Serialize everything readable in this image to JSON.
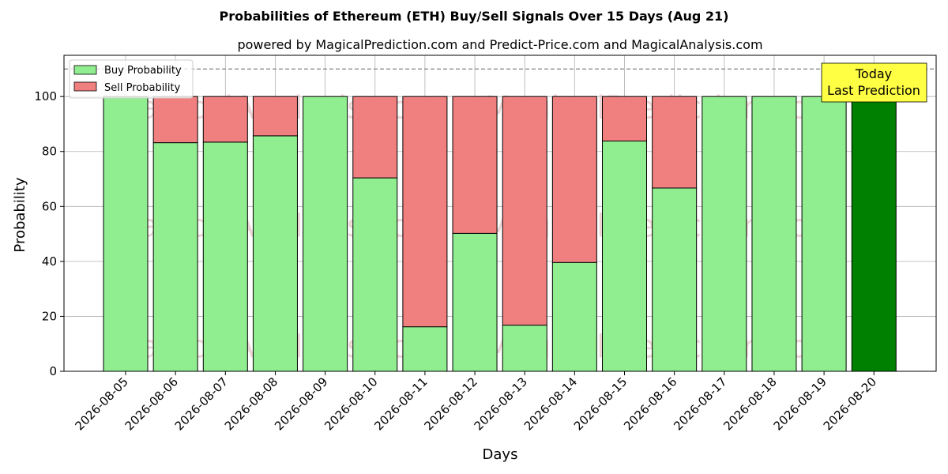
{
  "chart_data": {
    "type": "bar",
    "stacked": true,
    "title": "Probabilities of Ethereum (ETH) Buy/Sell Signals Over 15 Days (Aug 21)",
    "subtitle": "powered by MagicalPrediction.com and Predict-Price.com and MagicalAnalysis.com",
    "xlabel": "Days",
    "ylabel": "Probability",
    "ylim": [
      0,
      115
    ],
    "yticks": [
      0,
      20,
      40,
      60,
      80,
      100
    ],
    "grid": true,
    "legend_position": "top-left",
    "reference_line": 110,
    "categories": [
      "2026-08-05",
      "2026-08-06",
      "2026-08-07",
      "2026-08-08",
      "2026-08-09",
      "2026-08-10",
      "2026-08-11",
      "2026-08-12",
      "2026-08-13",
      "2026-08-14",
      "2026-08-15",
      "2026-08-16",
      "2026-08-17",
      "2026-08-18",
      "2026-08-19",
      "2026-08-20"
    ],
    "series": [
      {
        "name": "Buy Probability",
        "color": "#90ee90",
        "values": [
          100,
          83.2,
          83.4,
          85.7,
          100,
          70.4,
          16.2,
          50.2,
          16.8,
          39.6,
          83.8,
          66.7,
          100,
          100,
          100,
          100
        ]
      },
      {
        "name": "Sell Probability",
        "color": "#f08080",
        "values": [
          0,
          16.8,
          16.6,
          14.3,
          0,
          29.6,
          83.8,
          49.8,
          83.2,
          60.4,
          16.2,
          33.3,
          0,
          0,
          0,
          0
        ]
      }
    ],
    "highlight": {
      "index": 15,
      "color": "#008000"
    },
    "annotation": {
      "line1": "Today",
      "line2": "Last Prediction",
      "bg": "#ffff44"
    },
    "watermarks": [
      "MagicalAnalysis.com",
      "MagicalPrediction.com"
    ]
  }
}
